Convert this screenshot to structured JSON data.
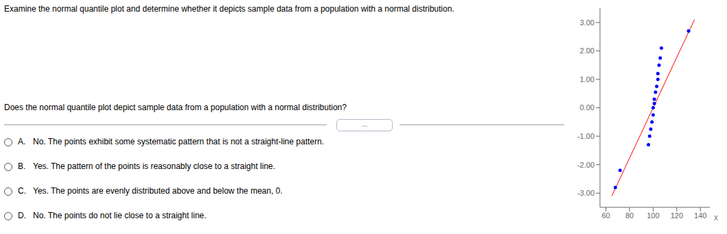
{
  "chart_data": {
    "type": "scatter",
    "title": "Examine the normal quantile plot and determine whether it depicts sample data from a population with a normal distribution.",
    "subtitle": "Does the normal quantile plot depict sample data from a population with a normal distribution?",
    "annotations": [
      "...",
      "A.",
      "No. The points exhibit some systematic pattern that is not a straight-line pattern.",
      "B.",
      "Yes. The pattern of the points is reasonably close to a straight line.",
      "C.",
      "Yes. The points are evenly distributed above and below the mean, 0.",
      "D.",
      "No. The points do not lie close to a straight line."
    ],
    "xlabel": "x",
    "xlim": [
      55,
      148
    ],
    "ylim": [
      -3.5,
      3.5
    ],
    "xticks": [
      60,
      80,
      100,
      120,
      140
    ],
    "yticks": [
      {
        "value": -3.0,
        "label": "-3.00"
      },
      {
        "value": -2.0,
        "label": "-2.00"
      },
      {
        "value": -1.0,
        "label": "-1.00"
      },
      {
        "value": 0.0,
        "label": "0.00"
      },
      {
        "value": 1.0,
        "label": "1.00"
      },
      {
        "value": 2.0,
        "label": "2.00"
      },
      {
        "value": 3.0,
        "label": "3.00"
      }
    ],
    "grid": false,
    "series": [
      {
        "type": "line",
        "color": "#ff0000",
        "x": [
          65,
          135
        ],
        "values": [
          -3.1,
          3.1
        ]
      },
      {
        "type": "scatter",
        "color": "#0000ff",
        "x": [
          68,
          72,
          96,
          97,
          98,
          99,
          100,
          100,
          101,
          101,
          102,
          103,
          104,
          104,
          105,
          106,
          107,
          130
        ],
        "values": [
          -2.8,
          -2.2,
          -1.3,
          -1.0,
          -0.75,
          -0.5,
          -0.25,
          0.0,
          0.15,
          0.3,
          0.55,
          0.75,
          1.0,
          1.2,
          1.5,
          1.75,
          2.1,
          2.7
        ]
      }
    ]
  }
}
